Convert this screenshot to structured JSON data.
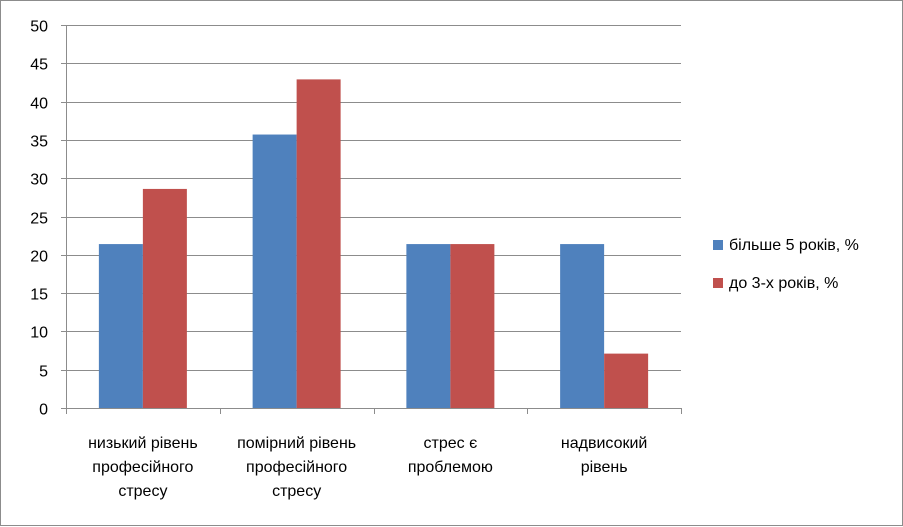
{
  "chart_data": {
    "type": "bar",
    "categories": [
      [
        "низький рівень",
        "професійного",
        "стресу"
      ],
      [
        "помірний рівень",
        "професійного",
        "стресу"
      ],
      [
        "стрес є",
        "проблемою"
      ],
      [
        "надвисокий",
        "рівень"
      ]
    ],
    "series": [
      {
        "name": "більше 5 років, %",
        "color": "#4f81bd",
        "values": [
          21.4,
          35.7,
          21.4,
          21.4
        ]
      },
      {
        "name": "до 3-х років, %",
        "color": "#c0504d",
        "values": [
          28.6,
          42.9,
          21.4,
          7.1
        ]
      }
    ],
    "ylim": [
      0,
      50
    ],
    "yticks": [
      0,
      5,
      10,
      15,
      20,
      25,
      30,
      35,
      40,
      45,
      50
    ],
    "grid": true,
    "legend_position": "right"
  }
}
